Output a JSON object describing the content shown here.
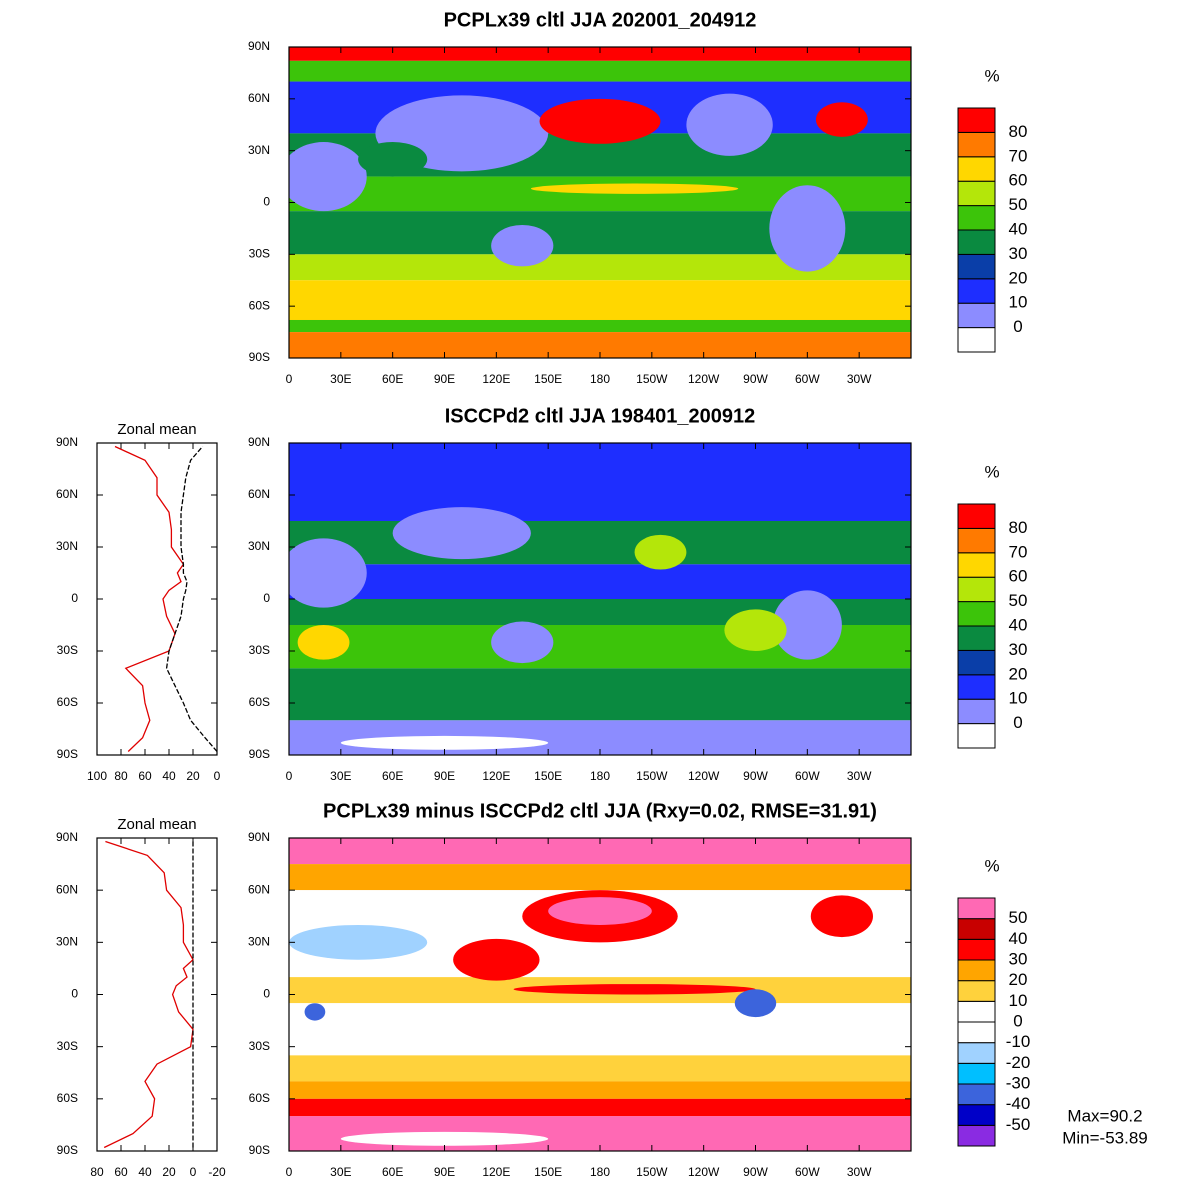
{
  "chart_data": [
    {
      "type": "map",
      "title": "PCPLx39 cltl JJA 202001_204912",
      "xlim": [
        0,
        360
      ],
      "ylim": [
        -90,
        90
      ],
      "xticks": [
        0,
        {
          "value": 30,
          "label": "30E"
        },
        {
          "value": 60,
          "label": "60E"
        },
        {
          "value": 90,
          "label": "90E"
        },
        {
          "value": 120,
          "label": "120E"
        },
        {
          "value": 150,
          "label": "150E"
        },
        {
          "value": 180,
          "label": "180"
        },
        {
          "value": 210,
          "label": "150W"
        },
        {
          "value": 240,
          "label": "120W"
        },
        {
          "value": 270,
          "label": "90W"
        },
        {
          "value": 300,
          "label": "60W"
        },
        {
          "value": 330,
          "label": "30W"
        }
      ],
      "yticks": [
        {
          "value": -90,
          "label": "90S"
        },
        {
          "value": -60,
          "label": "60S"
        },
        {
          "value": -30,
          "label": "30S"
        },
        0,
        {
          "value": 30,
          "label": "30N"
        },
        {
          "value": 60,
          "label": "60N"
        },
        {
          "value": 90,
          "label": "90N"
        }
      ],
      "colorbar": {
        "title": "%",
        "levels": [
          0,
          10,
          20,
          30,
          40,
          50,
          60,
          70,
          80
        ],
        "colors": [
          "#ffffff",
          "#8c8cff",
          "#1e2eff",
          "#0a3ea8",
          "#0a8a40",
          "#3cc40a",
          "#b4e60a",
          "#ffd700",
          "#ff7a00",
          "#ff0000"
        ]
      }
    },
    {
      "type": "line",
      "title": "Zonal mean",
      "y": [
        -88,
        -80,
        -70,
        -60,
        -50,
        -40,
        -30,
        -20,
        -10,
        0,
        5,
        10,
        15,
        20,
        30,
        40,
        50,
        60,
        70,
        80,
        88
      ],
      "xlim": [
        100,
        0
      ],
      "xticks": [
        100,
        80,
        60,
        40,
        20,
        0
      ],
      "ylim": [
        -90,
        90
      ],
      "yticks": [
        {
          "value": -90,
          "label": "90S"
        },
        {
          "value": -60,
          "label": "60S"
        },
        {
          "value": -30,
          "label": "30S"
        },
        0,
        {
          "value": 30,
          "label": "30N"
        },
        {
          "value": 60,
          "label": "60N"
        },
        {
          "value": 90,
          "label": "90N"
        }
      ],
      "series": [
        {
          "color": "#e00000",
          "line_style": "solid",
          "values": [
            74,
            62,
            56,
            60,
            62,
            76,
            40,
            35,
            42,
            45,
            40,
            30,
            33,
            28,
            38,
            38,
            40,
            50,
            50,
            60,
            85
          ]
        },
        {
          "color": "#000000",
          "line_style": "dashed",
          "values": [
            0,
            10,
            22,
            28,
            35,
            42,
            40,
            35,
            30,
            28,
            26,
            25,
            28,
            28,
            30,
            30,
            30,
            28,
            26,
            22,
            12
          ]
        }
      ]
    },
    {
      "type": "map",
      "title": "ISCCPd2 cltl JJA 198401_200912",
      "xlim": [
        0,
        360
      ],
      "ylim": [
        -90,
        90
      ],
      "xticks": [
        0,
        {
          "value": 30,
          "label": "30E"
        },
        {
          "value": 60,
          "label": "60E"
        },
        {
          "value": 90,
          "label": "90E"
        },
        {
          "value": 120,
          "label": "120E"
        },
        {
          "value": 150,
          "label": "150E"
        },
        {
          "value": 180,
          "label": "180"
        },
        {
          "value": 210,
          "label": "150W"
        },
        {
          "value": 240,
          "label": "120W"
        },
        {
          "value": 270,
          "label": "90W"
        },
        {
          "value": 300,
          "label": "60W"
        },
        {
          "value": 330,
          "label": "30W"
        }
      ],
      "yticks": [
        {
          "value": -90,
          "label": "90S"
        },
        {
          "value": -60,
          "label": "60S"
        },
        {
          "value": -30,
          "label": "30S"
        },
        0,
        {
          "value": 30,
          "label": "30N"
        },
        {
          "value": 60,
          "label": "60N"
        },
        {
          "value": 90,
          "label": "90N"
        }
      ],
      "colorbar": {
        "title": "%",
        "levels": [
          0,
          10,
          20,
          30,
          40,
          50,
          60,
          70,
          80
        ],
        "colors": [
          "#ffffff",
          "#8c8cff",
          "#1e2eff",
          "#0a3ea8",
          "#0a8a40",
          "#3cc40a",
          "#b4e60a",
          "#ffd700",
          "#ff7a00",
          "#ff0000"
        ]
      }
    },
    {
      "type": "line",
      "title": "Zonal mean",
      "y": [
        -88,
        -80,
        -70,
        -60,
        -50,
        -40,
        -30,
        -20,
        -10,
        0,
        5,
        10,
        15,
        20,
        30,
        40,
        50,
        60,
        70,
        80,
        88
      ],
      "xlim": [
        80,
        -20
      ],
      "xticks": [
        80,
        60,
        40,
        20,
        0,
        -20
      ],
      "ylim": [
        -90,
        90
      ],
      "yticks": [
        {
          "value": -90,
          "label": "90S"
        },
        {
          "value": -60,
          "label": "60S"
        },
        {
          "value": -30,
          "label": "30S"
        },
        0,
        {
          "value": 30,
          "label": "30N"
        },
        {
          "value": 60,
          "label": "60N"
        },
        {
          "value": 90,
          "label": "90N"
        }
      ],
      "series": [
        {
          "color": "#e00000",
          "line_style": "solid",
          "values": [
            74,
            50,
            34,
            32,
            40,
            30,
            2,
            0,
            12,
            17,
            14,
            5,
            8,
            0,
            8,
            8,
            10,
            22,
            24,
            38,
            73
          ]
        },
        {
          "color": "#000000",
          "line_style": "dashed",
          "values": [
            0,
            0,
            0,
            0,
            0,
            0,
            0,
            0,
            0,
            0,
            0,
            0,
            0,
            0,
            0,
            0,
            0,
            0,
            0,
            0,
            0
          ]
        }
      ]
    },
    {
      "type": "map",
      "title": "PCPLx39 minus ISCCPd2 cltl JJA (Rxy=0.02, RMSE=31.91)",
      "xlim": [
        0,
        360
      ],
      "ylim": [
        -90,
        90
      ],
      "xticks": [
        0,
        {
          "value": 30,
          "label": "30E"
        },
        {
          "value": 60,
          "label": "60E"
        },
        {
          "value": 90,
          "label": "90E"
        },
        {
          "value": 120,
          "label": "120E"
        },
        {
          "value": 150,
          "label": "150E"
        },
        {
          "value": 180,
          "label": "180"
        },
        {
          "value": 210,
          "label": "150W"
        },
        {
          "value": 240,
          "label": "120W"
        },
        {
          "value": 270,
          "label": "90W"
        },
        {
          "value": 300,
          "label": "60W"
        },
        {
          "value": 330,
          "label": "30W"
        }
      ],
      "yticks": [
        {
          "value": -90,
          "label": "90S"
        },
        {
          "value": -60,
          "label": "60S"
        },
        {
          "value": -30,
          "label": "30S"
        },
        0,
        {
          "value": 30,
          "label": "30N"
        },
        {
          "value": 60,
          "label": "60N"
        },
        {
          "value": 90,
          "label": "90N"
        }
      ],
      "colorbar": {
        "title": "%",
        "levels": [
          -50,
          -40,
          -30,
          -20,
          -10,
          0,
          10,
          20,
          30,
          40,
          50
        ],
        "colors": [
          "#8a2be2",
          "#0000c8",
          "#3c64dc",
          "#00bfff",
          "#a0d2ff",
          "#ffffff",
          "#ffffff",
          "#ffd23c",
          "#ffa500",
          "#ff0000",
          "#c80000",
          "#ff69b4"
        ]
      },
      "annotations": [
        "Max=90.2",
        "Min=-53.89"
      ]
    }
  ]
}
